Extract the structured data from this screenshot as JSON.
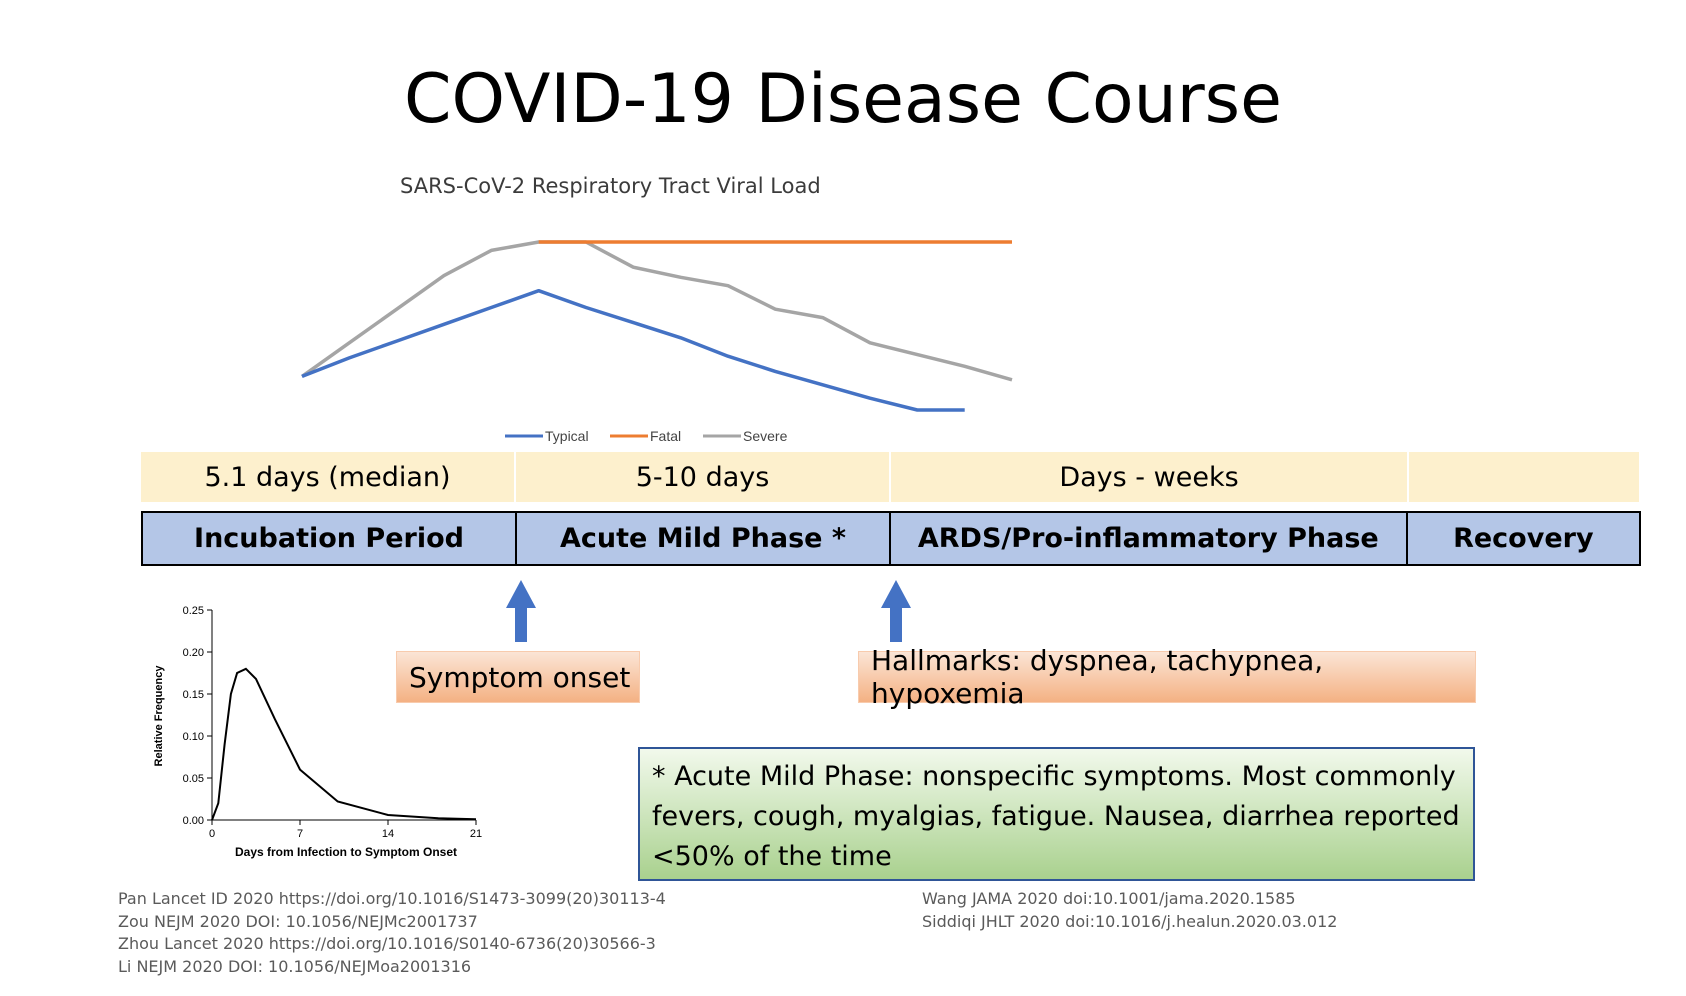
{
  "title": "COVID-19 Disease Course",
  "viral_load": {
    "title": "SARS-CoV-2 Respiratory Tract Viral Load",
    "legend": [
      {
        "name": "Typical",
        "color": "#4472c4"
      },
      {
        "name": "Fatal",
        "color": "#ed7d31"
      },
      {
        "name": "Severe",
        "color": "#a5a5a5"
      }
    ]
  },
  "durations": [
    "5.1 days (median)",
    "5-10 days",
    "Days - weeks",
    ""
  ],
  "phases": [
    "Incubation Period",
    "Acute Mild Phase *",
    "ARDS/Pro-inflammatory Phase",
    "Recovery"
  ],
  "callouts": {
    "symptom_onset": "Symptom onset",
    "hallmarks": "Hallmarks: dyspnea, tachypnea, hypoxemia"
  },
  "note": "* Acute Mild Phase: nonspecific symptoms. Most commonly fevers, cough, myalgias, fatigue. Nausea, diarrhea reported <50% of the time",
  "incubation_chart": {
    "ylabel": "Relative Frequency",
    "xlabel": "Days from Infection to Symptom Onset",
    "yticks": [
      "0.25",
      "0.20",
      "0.15",
      "0.10",
      "0.05",
      "0.00"
    ],
    "xticks": [
      "0",
      "7",
      "14",
      "21"
    ]
  },
  "references_left": [
    "Pan Lancet ID 2020 https://doi.org/10.1016/S1473-3099(20)30113-4",
    "Zou NEJM 2020 DOI: 10.1056/NEJMc2001737",
    "Zhou Lancet 2020 https://doi.org/10.1016/S0140-6736(20)30566-3",
    "Li NEJM 2020 DOI: 10.1056/NEJMoa2001316"
  ],
  "references_right": [
    "Wang JAMA 2020 doi:10.1001/jama.2020.1585",
    "Siddiqi JHLT 2020 doi:10.1016/j.healun.2020.03.012"
  ],
  "chart_data": [
    {
      "type": "line",
      "title": "SARS-CoV-2 Respiratory Tract Viral Load",
      "x": [
        1,
        2,
        3,
        4,
        5,
        6,
        7,
        8,
        9,
        10,
        11,
        12,
        13,
        14,
        15,
        16
      ],
      "ylim": [
        0,
        10
      ],
      "series": [
        {
          "name": "Typical",
          "values": [
            2,
            3.1,
            4.1,
            5.1,
            6.1,
            7.1,
            6.1,
            5.2,
            4.3,
            3.2,
            2.3,
            1.5,
            0.7,
            0,
            0,
            null
          ]
        },
        {
          "name": "Fatal",
          "values": [
            null,
            null,
            null,
            null,
            null,
            10,
            10,
            10,
            10,
            10,
            10,
            10,
            10,
            10,
            10,
            10
          ]
        },
        {
          "name": "Severe",
          "values": [
            2,
            4,
            6,
            8,
            9.5,
            10,
            10,
            8.5,
            7.9,
            7.4,
            6,
            5.5,
            4,
            3.3,
            2.6,
            1.8
          ]
        }
      ]
    },
    {
      "type": "line",
      "xlabel": "Days from Infection to Symptom Onset",
      "ylabel": "Relative Frequency",
      "xlim": [
        0,
        21
      ],
      "ylim": [
        0,
        0.25
      ],
      "series": [
        {
          "values": [
            [
              0,
              0
            ],
            [
              0.5,
              0.02
            ],
            [
              1,
              0.09
            ],
            [
              1.5,
              0.15
            ],
            [
              2,
              0.175
            ],
            [
              2.7,
              0.18
            ],
            [
              3.5,
              0.168
            ],
            [
              5,
              0.12
            ],
            [
              7,
              0.06
            ],
            [
              10,
              0.022
            ],
            [
              14,
              0.006
            ],
            [
              18,
              0.002
            ],
            [
              21,
              0.001
            ]
          ]
        }
      ]
    }
  ]
}
